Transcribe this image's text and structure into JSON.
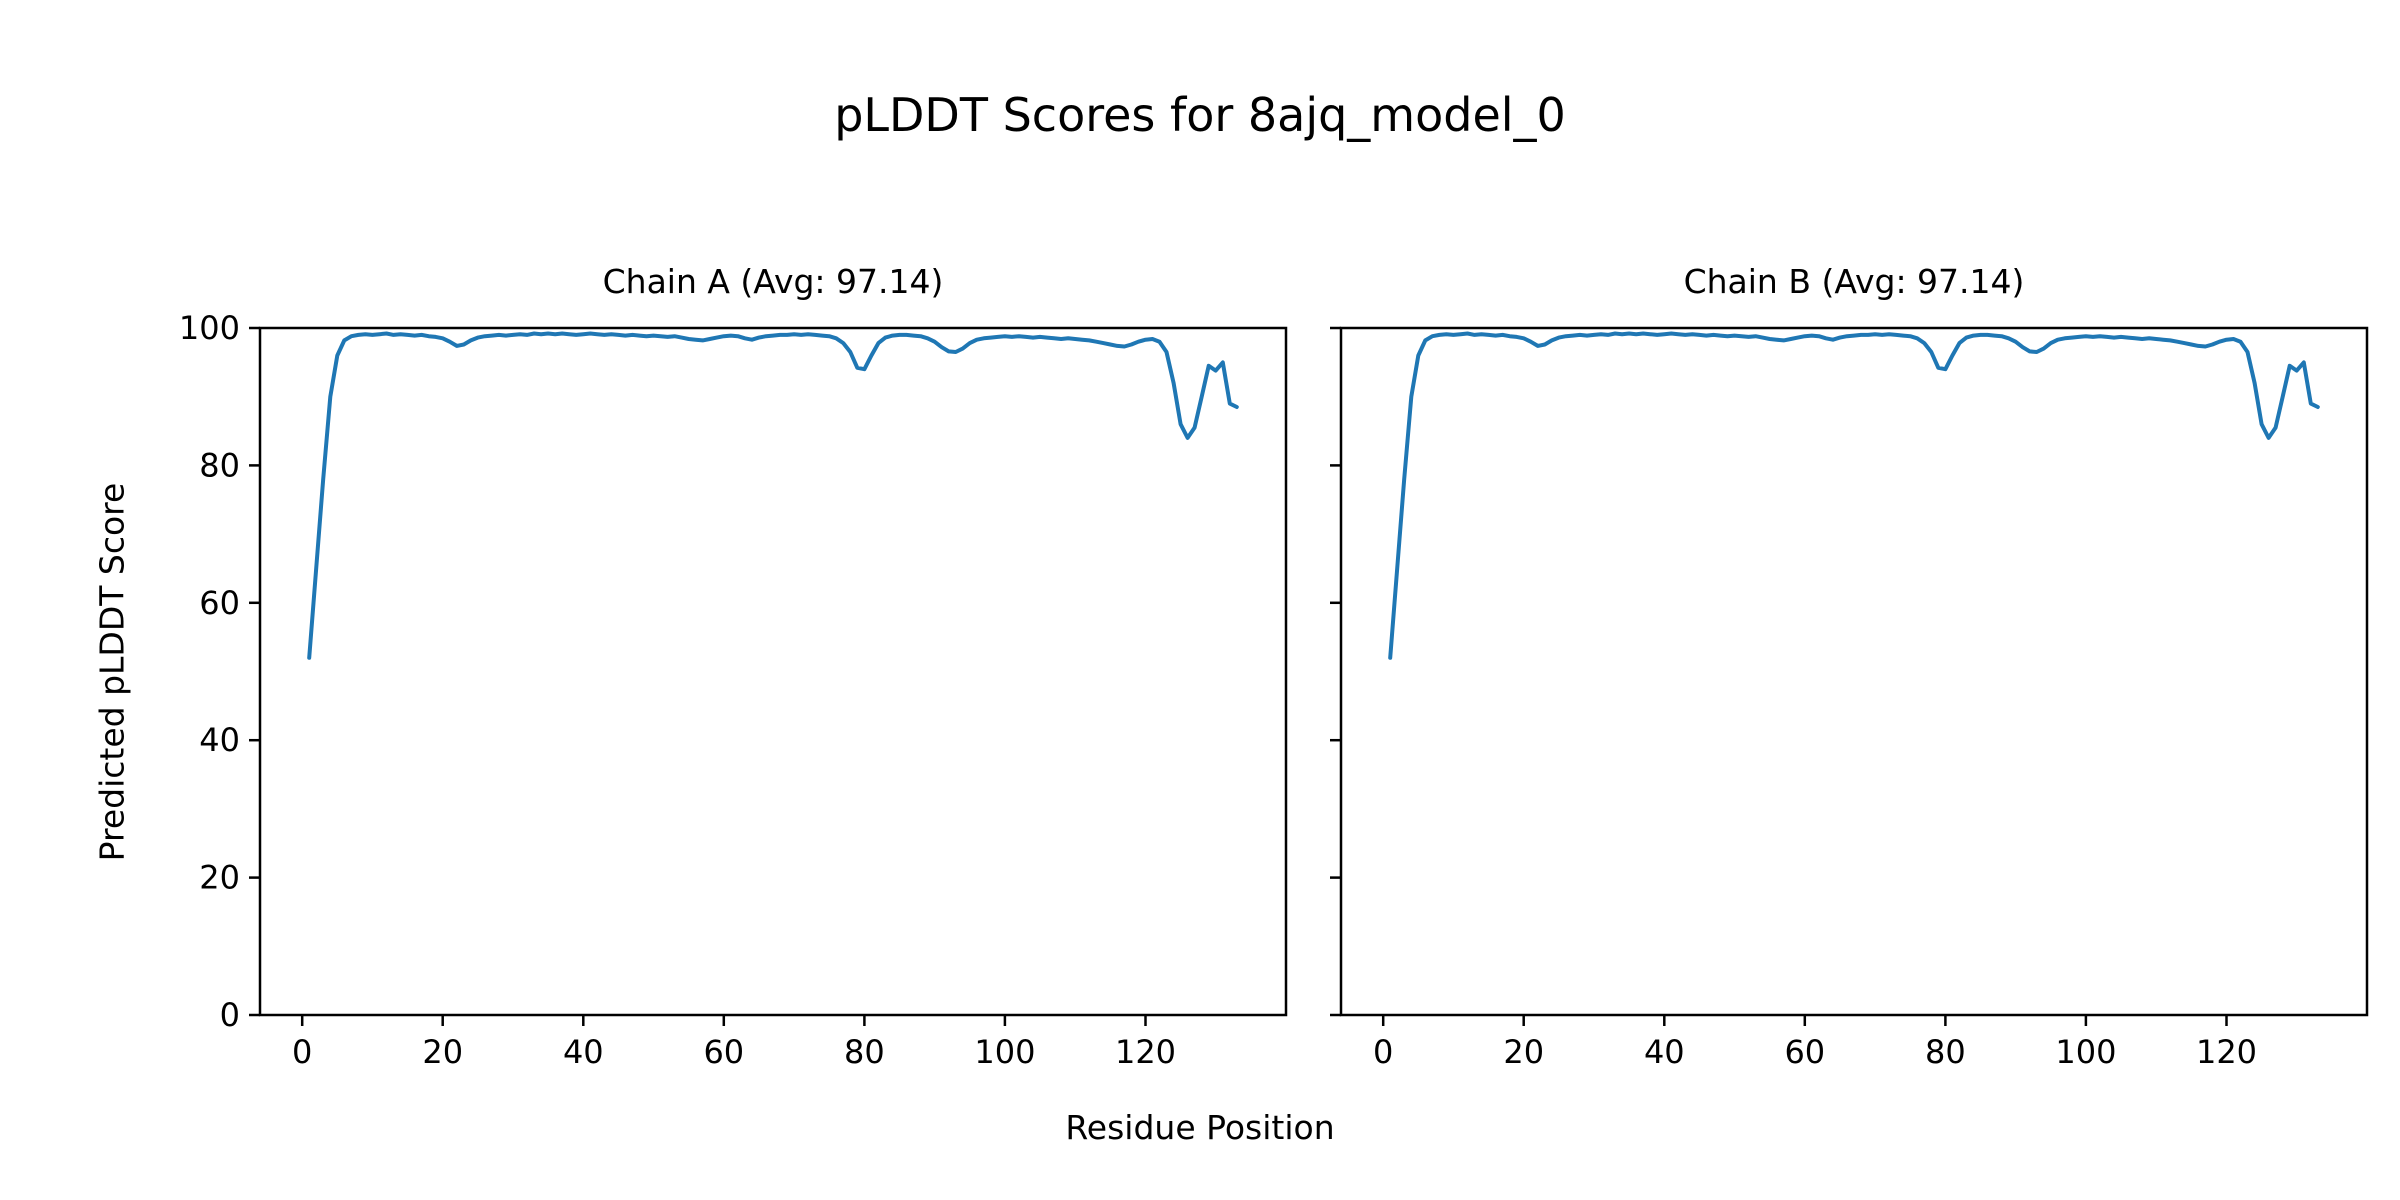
{
  "figure": {
    "title": "pLDDT Scores for 8ajq_model_0",
    "xlabel": "Residue Position",
    "ylabel": "Predicted pLDDT Score"
  },
  "colors": {
    "line": "#1f77b4",
    "axes": "#000000",
    "background": "#ffffff"
  },
  "chart_data": [
    {
      "type": "line",
      "title": "Chain A (Avg: 97.14)",
      "avg": 97.14,
      "xlabel": "Residue Position",
      "ylabel": "Predicted pLDDT Score",
      "xlim": [
        -6,
        140
      ],
      "ylim": [
        0,
        100
      ],
      "xticks": [
        0,
        20,
        40,
        60,
        80,
        100,
        120
      ],
      "yticks": [
        0,
        20,
        40,
        60,
        80,
        100
      ],
      "show_ytick_labels": true,
      "grid": false,
      "line_color": "#1f77b4",
      "x_start": 1,
      "values": [
        52.0,
        65.0,
        78.0,
        90.0,
        96.0,
        98.2,
        98.8,
        99.0,
        99.1,
        99.0,
        99.1,
        99.2,
        99.0,
        99.1,
        99.0,
        98.9,
        99.0,
        98.8,
        98.7,
        98.5,
        98.0,
        97.4,
        97.6,
        98.2,
        98.6,
        98.8,
        98.9,
        99.0,
        98.9,
        99.0,
        99.1,
        99.0,
        99.2,
        99.1,
        99.2,
        99.1,
        99.2,
        99.1,
        99.0,
        99.1,
        99.2,
        99.1,
        99.0,
        99.1,
        99.0,
        98.9,
        99.0,
        98.9,
        98.8,
        98.9,
        98.8,
        98.7,
        98.8,
        98.6,
        98.4,
        98.3,
        98.2,
        98.4,
        98.6,
        98.8,
        98.9,
        98.8,
        98.5,
        98.3,
        98.6,
        98.8,
        98.9,
        99.0,
        99.0,
        99.1,
        99.0,
        99.1,
        99.0,
        98.9,
        98.8,
        98.5,
        97.8,
        96.5,
        94.2,
        94.0,
        96.0,
        97.8,
        98.6,
        98.9,
        99.0,
        99.0,
        98.9,
        98.8,
        98.5,
        98.0,
        97.2,
        96.6,
        96.5,
        97.0,
        97.8,
        98.3,
        98.5,
        98.6,
        98.7,
        98.8,
        98.7,
        98.8,
        98.7,
        98.6,
        98.7,
        98.6,
        98.5,
        98.4,
        98.5,
        98.4,
        98.3,
        98.2,
        98.0,
        97.8,
        97.6,
        97.4,
        97.3,
        97.6,
        98.0,
        98.3,
        98.4,
        98.0,
        96.5,
        92.0,
        86.0,
        84.0,
        85.5,
        90.0,
        94.5,
        93.8,
        95.0,
        89.0,
        88.5
      ]
    },
    {
      "type": "line",
      "title": "Chain B (Avg: 97.14)",
      "avg": 97.14,
      "xlabel": "Residue Position",
      "ylabel": "Predicted pLDDT Score",
      "xlim": [
        -6,
        140
      ],
      "ylim": [
        0,
        100
      ],
      "xticks": [
        0,
        20,
        40,
        60,
        80,
        100,
        120
      ],
      "yticks": [
        0,
        20,
        40,
        60,
        80,
        100
      ],
      "show_ytick_labels": false,
      "grid": false,
      "line_color": "#1f77b4",
      "x_start": 1,
      "values": [
        52.0,
        65.0,
        78.0,
        90.0,
        96.0,
        98.2,
        98.8,
        99.0,
        99.1,
        99.0,
        99.1,
        99.2,
        99.0,
        99.1,
        99.0,
        98.9,
        99.0,
        98.8,
        98.7,
        98.5,
        98.0,
        97.4,
        97.6,
        98.2,
        98.6,
        98.8,
        98.9,
        99.0,
        98.9,
        99.0,
        99.1,
        99.0,
        99.2,
        99.1,
        99.2,
        99.1,
        99.2,
        99.1,
        99.0,
        99.1,
        99.2,
        99.1,
        99.0,
        99.1,
        99.0,
        98.9,
        99.0,
        98.9,
        98.8,
        98.9,
        98.8,
        98.7,
        98.8,
        98.6,
        98.4,
        98.3,
        98.2,
        98.4,
        98.6,
        98.8,
        98.9,
        98.8,
        98.5,
        98.3,
        98.6,
        98.8,
        98.9,
        99.0,
        99.0,
        99.1,
        99.0,
        99.1,
        99.0,
        98.9,
        98.8,
        98.5,
        97.8,
        96.5,
        94.2,
        94.0,
        96.0,
        97.8,
        98.6,
        98.9,
        99.0,
        99.0,
        98.9,
        98.8,
        98.5,
        98.0,
        97.2,
        96.6,
        96.5,
        97.0,
        97.8,
        98.3,
        98.5,
        98.6,
        98.7,
        98.8,
        98.7,
        98.8,
        98.7,
        98.6,
        98.7,
        98.6,
        98.5,
        98.4,
        98.5,
        98.4,
        98.3,
        98.2,
        98.0,
        97.8,
        97.6,
        97.4,
        97.3,
        97.6,
        98.0,
        98.3,
        98.4,
        98.0,
        96.5,
        92.0,
        86.0,
        84.0,
        85.5,
        90.0,
        94.5,
        93.8,
        95.0,
        89.0,
        88.5
      ]
    }
  ]
}
